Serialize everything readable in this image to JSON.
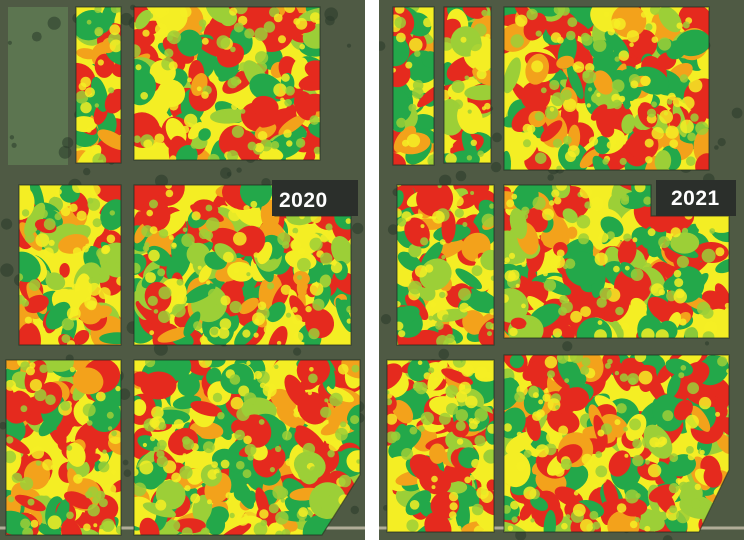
{
  "years": {
    "left": "2020",
    "right": "2021"
  },
  "map_legend_colors": {
    "low": "#e52a1e",
    "medium_low": "#f3a21b",
    "medium": "#f4ee24",
    "medium_high": "#9ccf37",
    "high": "#23a84a"
  },
  "background_colors": {
    "imagery": "#4f5a44",
    "forest": "#2a3a2a",
    "road": "#c9c2ae",
    "pasture": "#5e7a52"
  }
}
